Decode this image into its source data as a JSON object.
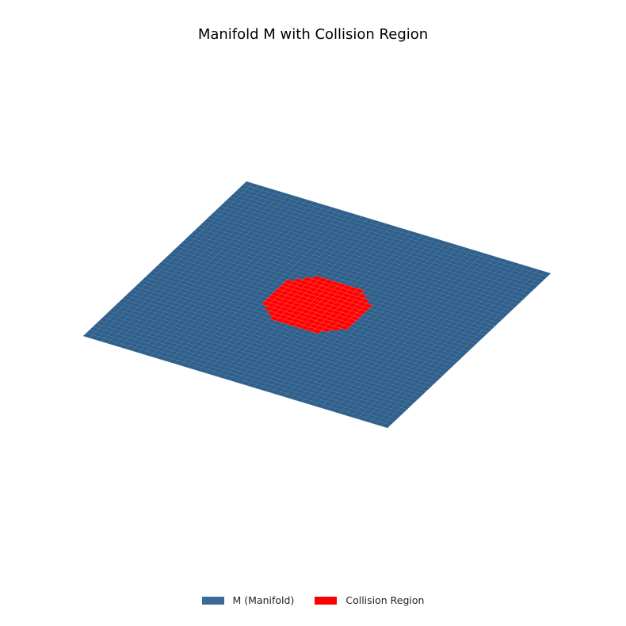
{
  "chart_data": {
    "type": "surface3d",
    "title": "Manifold M with Collision Region",
    "xlabel": "",
    "ylabel": "",
    "zlabel": "",
    "axes_visible": false,
    "grid": false,
    "legend_position": "bottom-center",
    "surface": {
      "name": "M (Manifold)",
      "shape": "flat square plane",
      "x_range": [
        -1,
        1
      ],
      "y_range": [
        -1,
        1
      ],
      "z": 0,
      "grid_resolution": 50,
      "color": "#2f5f8a"
    },
    "collision_region": {
      "name": "Collision Region",
      "shape": "disc",
      "center": [
        0,
        0
      ],
      "radius": 0.3,
      "color": "#ff0000"
    }
  },
  "legend": {
    "items": [
      {
        "label": "M (Manifold)",
        "color": "#3a6a96"
      },
      {
        "label": "Collision Region",
        "color": "#ff0000"
      }
    ]
  }
}
